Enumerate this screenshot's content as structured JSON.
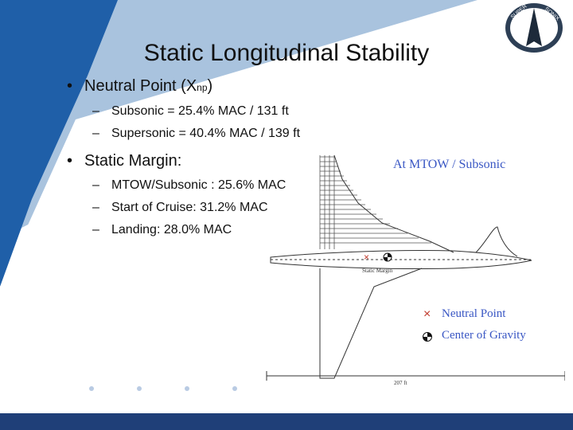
{
  "slide": {
    "title": "Static Longitudinal Stability",
    "bullets": [
      {
        "main": "Neutral Point (X",
        "main_sub": "np",
        "main_end": ")",
        "subs": [
          "Subsonic = 25.4% MAC / 131 ft",
          "Supersonic = 40.4% MAC / 139 ft"
        ]
      },
      {
        "main": "Static Margin:",
        "subs": [
          "MTOW/Subsonic : 25.6% MAC",
          "Start of Cruise: 31.2% MAC",
          "Landing: 28.0% MAC"
        ]
      }
    ],
    "bullet_symbol": "•",
    "dash_symbol": "–"
  },
  "figure": {
    "caption": "At MTOW / Subsonic",
    "margin_label": "Static Margin",
    "dimension_label": "207 ft",
    "legend": [
      {
        "symbol": "×",
        "label": "Neutral Point",
        "color": "#c0392b"
      },
      {
        "symbol": "cg",
        "label": "Center of Gravity",
        "color": "#111111"
      }
    ]
  },
  "logo": {
    "text_left": "SUPER",
    "text_right": "SONIX"
  },
  "colors": {
    "footer": "#1f3f78",
    "swoosh_dark": "#1f5fa8",
    "swoosh_light": "#a9c3de",
    "legend_text": "#3a57c4"
  }
}
